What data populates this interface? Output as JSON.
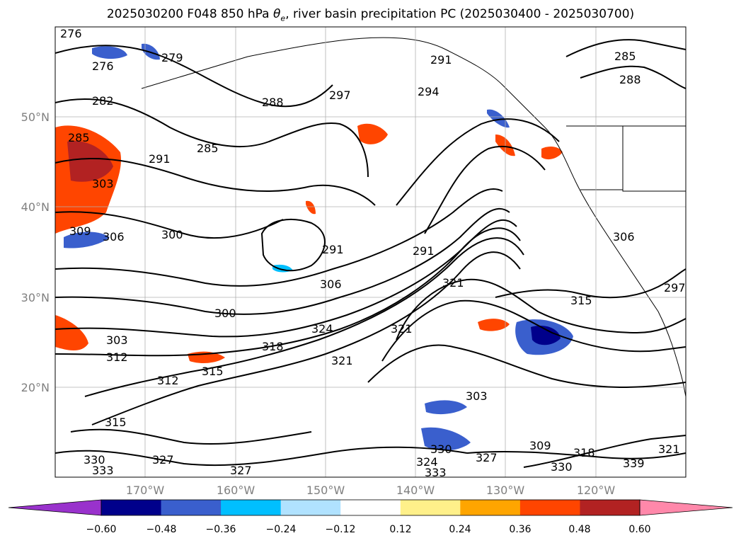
{
  "title": {
    "prefix": "2025030200 F048 850 hPa ",
    "theta_symbol": "θ",
    "theta_sub": "e",
    "suffix": ", river basin precipitation PC (2025030400 - 2025030700)"
  },
  "map": {
    "lon_ticks": [
      "170°W",
      "160°W",
      "150°W",
      "140°W",
      "130°W",
      "120°W"
    ],
    "lat_ticks": [
      "50°N",
      "40°N",
      "30°N",
      "20°N"
    ]
  },
  "colorbar": {
    "extend": "both",
    "colors": [
      "#9932cc",
      "#00008b",
      "#3a5fcd",
      "#00bfff",
      "#b0e2ff",
      "#ffffff",
      "#fff08a",
      "#ffa500",
      "#ff4500",
      "#b22222",
      "#ff88aa"
    ],
    "tick_labels": [
      "−0.60",
      "−0.48",
      "−0.36",
      "−0.24",
      "−0.12",
      "0.12",
      "0.24",
      "0.36",
      "0.48",
      "0.60"
    ]
  },
  "contour_labels": [
    "276",
    "276",
    "279",
    "282",
    "285",
    "288",
    "291",
    "297",
    "294",
    "291",
    "288",
    "285",
    "285",
    "291",
    "303",
    "309",
    "306",
    "300",
    "291",
    "306",
    "300",
    "303",
    "312",
    "324",
    "318",
    "315",
    "312",
    "321",
    "321",
    "321",
    "315",
    "297",
    "306",
    "303",
    "309",
    "318",
    "330",
    "327",
    "324",
    "330",
    "333",
    "327",
    "333",
    "330",
    "327",
    "339",
    "321",
    "315"
  ]
}
